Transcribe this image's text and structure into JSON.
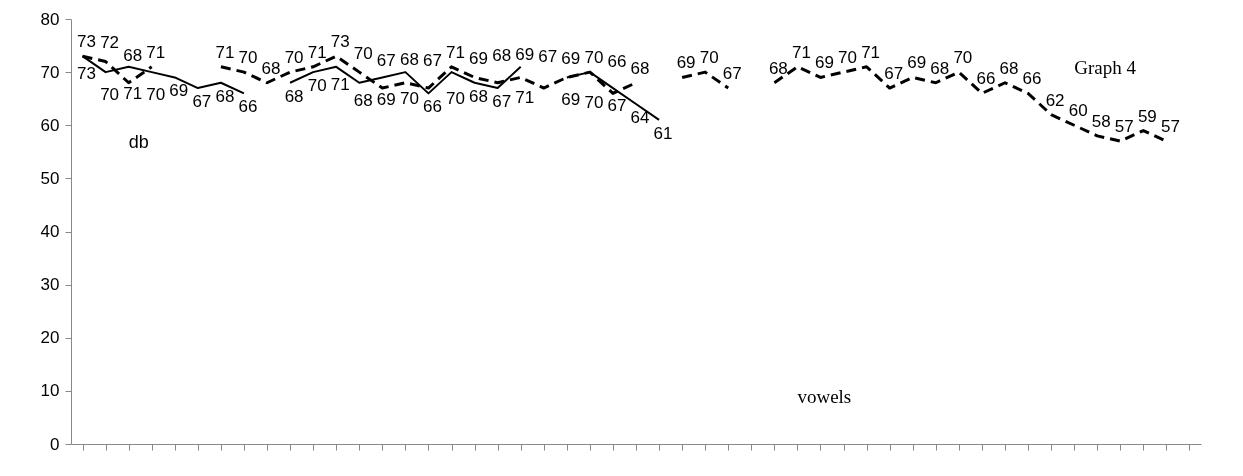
{
  "chart_data": {
    "type": "line",
    "title": "Graph 4",
    "xlabel": "vowels",
    "ylabel": "db",
    "categories": [
      null,
      null,
      null,
      null,
      null,
      null,
      null,
      null,
      null,
      null,
      null,
      null,
      null,
      null,
      null,
      null,
      null,
      null,
      null,
      null,
      null,
      null,
      null,
      null,
      null,
      null,
      null,
      null,
      null,
      null,
      null,
      null,
      null,
      null,
      null,
      null,
      null,
      null,
      null,
      null,
      null,
      null,
      null,
      null,
      null,
      null,
      null,
      null,
      null
    ],
    "series": [
      {
        "color": "#000000",
        "line_style": "solid",
        "values": [
          73,
          70,
          71,
          70,
          69,
          67,
          68,
          66,
          null,
          68,
          70,
          71,
          68,
          69,
          70,
          66,
          70,
          68,
          67,
          71,
          null,
          69,
          70,
          67,
          64,
          61,
          null,
          null,
          null,
          null,
          null,
          null,
          null,
          null,
          null,
          null,
          null,
          null,
          null,
          null,
          null,
          null,
          null,
          null,
          null,
          null,
          null,
          null,
          null
        ]
      },
      {
        "color": "#000000",
        "line_style": "dashed",
        "values": [
          73,
          72,
          68,
          71,
          null,
          null,
          71,
          70,
          68,
          70,
          71,
          73,
          70,
          67,
          68,
          67,
          71,
          69,
          68,
          69,
          67,
          69,
          70,
          66,
          68,
          null,
          69,
          70,
          67,
          null,
          68,
          71,
          69,
          70,
          71,
          67,
          69,
          68,
          70,
          66,
          68,
          66,
          62,
          60,
          58,
          57,
          59,
          57,
          null
        ]
      }
    ],
    "ylim": [
      0,
      80
    ],
    "yticks": [
      0,
      10,
      20,
      30,
      40,
      50,
      60,
      70,
      80
    ],
    "grid": false,
    "marker": "none",
    "data_labels": true,
    "tick_labels": "y"
  }
}
